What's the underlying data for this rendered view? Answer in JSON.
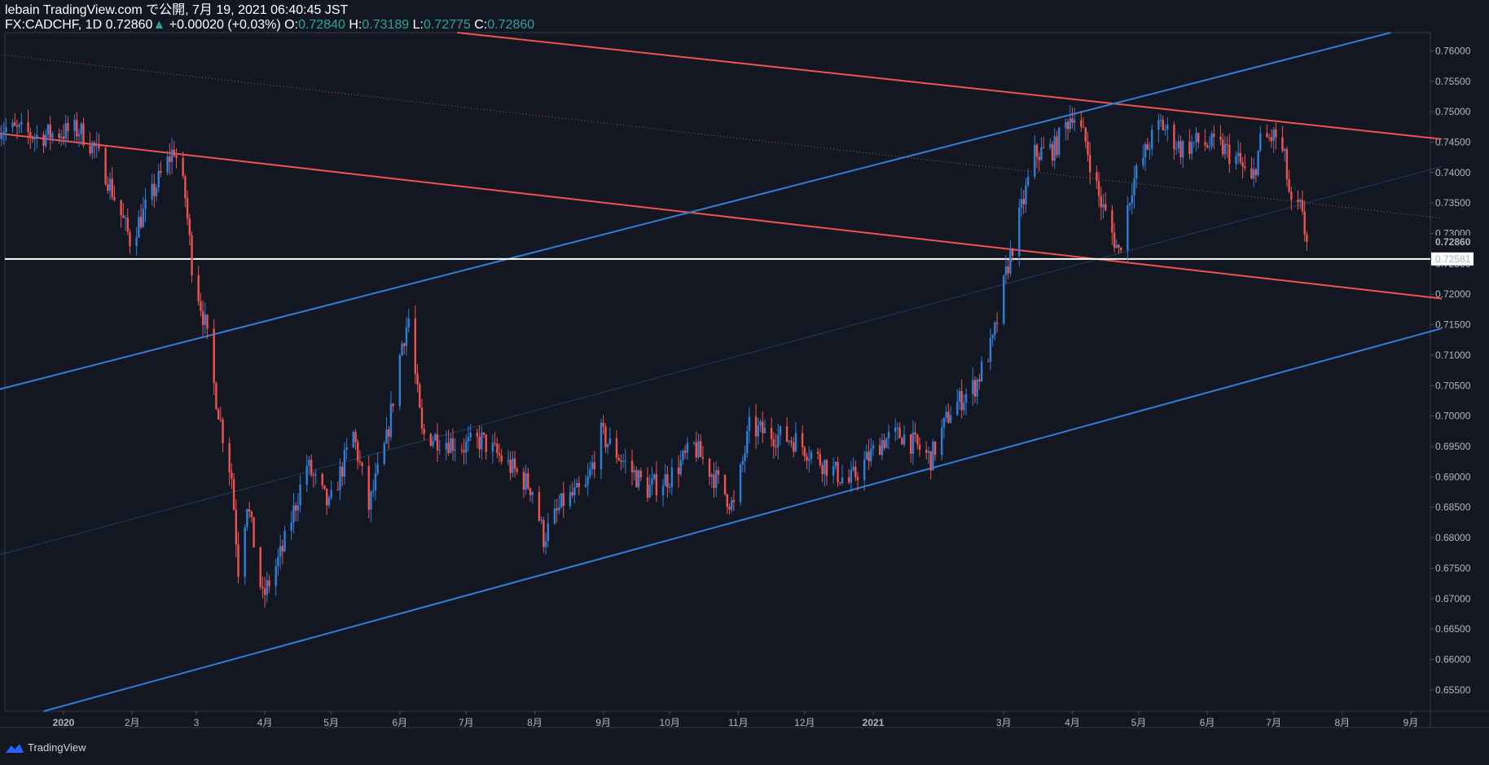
{
  "header": {
    "line1": "lebain TradingView.com で公開, 7月 19, 2021 06:40:45 JST",
    "symbol": "FX:CADCHF, 1D",
    "last": "0.72860",
    "change": "+0.00020 (+0.03%)",
    "o_label": "O:",
    "o_val": "0.72840",
    "h_label": "H:",
    "h_val": "0.73189",
    "l_label": "L:",
    "l_val": "0.72775",
    "c_label": "C:",
    "c_val": "0.72860",
    "up_arrow": "▲"
  },
  "footer": {
    "brand": "TradingView",
    "logo_icon": "tradingview-logo-icon"
  },
  "colors": {
    "background": "#131722",
    "up": "#2f7fd8",
    "down": "#ef5350",
    "resistance": "#ef5350",
    "support": "#2f7fd8",
    "hline": "#ffffff"
  },
  "chart_data": {
    "type": "candlestick",
    "symbol": "FX:CADCHF",
    "interval": "1D",
    "ylim": [
      0.6515,
      0.763
    ],
    "y_ticks": [
      "0.76000",
      "0.75500",
      "0.75000",
      "0.74500",
      "0.74000",
      "0.73500",
      "0.73000",
      "0.72500",
      "0.72000",
      "0.71500",
      "0.71000",
      "0.70500",
      "0.70000",
      "0.69500",
      "0.69000",
      "0.68500",
      "0.68000",
      "0.67500",
      "0.67000",
      "0.66500",
      "0.66000",
      "0.65500"
    ],
    "x_labels": [
      "2020",
      "2月",
      "3",
      "4月",
      "5月",
      "6月",
      "7月",
      "8月",
      "9月",
      "10月",
      "11月",
      "12月",
      "2021",
      "3月",
      "4月",
      "5月",
      "6月",
      "7月",
      "8月",
      "9月"
    ],
    "x_label_dates": [
      "2020-01-01",
      "2020-02-01",
      "2020-03-01",
      "2020-04-01",
      "2020-05-01",
      "2020-06-01",
      "2020-07-01",
      "2020-08-01",
      "2020-09-01",
      "2020-10-01",
      "2020-11-01",
      "2020-12-01",
      "2021-01-01",
      "2021-03-01",
      "2021-04-01",
      "2021-05-01",
      "2021-06-01",
      "2021-07-01",
      "2021-08-01",
      "2021-09-01"
    ],
    "last_price": "0.72860",
    "horizontal_line": {
      "label": "0.72581",
      "value": 0.72581
    },
    "waypoints": [
      [
        "2019-12-03",
        0.7475
      ],
      [
        "2019-12-20",
        0.746
      ],
      [
        "2020-01-08",
        0.747
      ],
      [
        "2020-01-15",
        0.744
      ],
      [
        "2020-01-20",
        0.74
      ],
      [
        "2020-01-31",
        0.729
      ],
      [
        "2020-02-07",
        0.734
      ],
      [
        "2020-02-14",
        0.7395
      ],
      [
        "2020-02-20",
        0.744
      ],
      [
        "2020-02-25",
        0.736
      ],
      [
        "2020-02-28",
        0.725
      ],
      [
        "2020-03-05",
        0.715
      ],
      [
        "2020-03-09",
        0.705
      ],
      [
        "2020-03-13",
        0.697
      ],
      [
        "2020-03-17",
        0.69
      ],
      [
        "2020-03-20",
        0.675
      ],
      [
        "2020-03-24",
        0.686
      ],
      [
        "2020-03-31",
        0.67
      ],
      [
        "2020-04-09",
        0.678
      ],
      [
        "2020-04-20",
        0.692
      ],
      [
        "2020-04-30",
        0.685
      ],
      [
        "2020-05-11",
        0.697
      ],
      [
        "2020-05-18",
        0.685
      ],
      [
        "2020-05-26",
        0.696
      ],
      [
        "2020-06-02",
        0.712
      ],
      [
        "2020-06-05",
        0.716
      ],
      [
        "2020-06-11",
        0.697
      ],
      [
        "2020-06-22",
        0.696
      ],
      [
        "2020-06-30",
        0.695
      ],
      [
        "2020-07-08",
        0.696
      ],
      [
        "2020-07-20",
        0.692
      ],
      [
        "2020-07-31",
        0.688
      ],
      [
        "2020-08-05",
        0.68
      ],
      [
        "2020-08-14",
        0.686
      ],
      [
        "2020-08-24",
        0.688
      ],
      [
        "2020-08-31",
        0.697
      ],
      [
        "2020-09-09",
        0.693
      ],
      [
        "2020-09-21",
        0.688
      ],
      [
        "2020-10-01",
        0.69
      ],
      [
        "2020-10-12",
        0.695
      ],
      [
        "2020-10-23",
        0.689
      ],
      [
        "2020-10-30",
        0.685
      ],
      [
        "2020-11-06",
        0.698
      ],
      [
        "2020-11-16",
        0.697
      ],
      [
        "2020-11-27",
        0.696
      ],
      [
        "2020-12-07",
        0.693
      ],
      [
        "2020-12-21",
        0.689
      ],
      [
        "2021-01-05",
        0.696
      ],
      [
        "2021-01-14",
        0.697
      ],
      [
        "2021-01-27",
        0.693
      ],
      [
        "2021-02-05",
        0.701
      ],
      [
        "2021-02-16",
        0.705
      ],
      [
        "2021-02-24",
        0.712
      ],
      [
        "2021-03-03",
        0.725
      ],
      [
        "2021-03-09",
        0.734
      ],
      [
        "2021-03-15",
        0.743
      ],
      [
        "2021-03-24",
        0.744
      ],
      [
        "2021-04-01",
        0.75
      ],
      [
        "2021-04-07",
        0.745
      ],
      [
        "2021-04-13",
        0.736
      ],
      [
        "2021-04-22",
        0.727
      ],
      [
        "2021-04-28",
        0.738
      ],
      [
        "2021-05-06",
        0.745
      ],
      [
        "2021-05-11",
        0.748
      ],
      [
        "2021-05-20",
        0.744
      ],
      [
        "2021-05-28",
        0.745
      ],
      [
        "2021-06-08",
        0.744
      ],
      [
        "2021-06-15",
        0.742
      ],
      [
        "2021-06-21",
        0.738
      ],
      [
        "2021-06-25",
        0.745
      ],
      [
        "2021-07-02",
        0.746
      ],
      [
        "2021-07-06",
        0.742
      ],
      [
        "2021-07-09",
        0.734
      ],
      [
        "2021-07-13",
        0.734
      ],
      [
        "2021-07-16",
        0.7286
      ]
    ],
    "trendlines": [
      {
        "name": "upper-resistance",
        "color": "#ef5350",
        "points": [
          [
            "2020-06-27",
            0.763
          ],
          [
            "2021-09-15",
            0.7455
          ]
        ]
      },
      {
        "name": "lower-resistance",
        "color": "#ef5350",
        "points": [
          [
            "2019-12-01",
            0.7465
          ],
          [
            "2021-09-15",
            0.7193
          ]
        ]
      },
      {
        "name": "resistance-midline",
        "color": "#ef5350",
        "dotted": true,
        "points": [
          [
            "2019-12-01",
            0.7595
          ],
          [
            "2021-09-15",
            0.7325
          ]
        ]
      },
      {
        "name": "upper-support",
        "color": "#2f7fd8",
        "points": [
          [
            "2019-12-01",
            0.7042
          ],
          [
            "2021-08-23",
            0.763
          ]
        ]
      },
      {
        "name": "lower-support",
        "color": "#2f7fd8",
        "points": [
          [
            "2019-12-23",
            0.6515
          ],
          [
            "2021-09-15",
            0.7144
          ]
        ]
      },
      {
        "name": "support-midline",
        "color": "#2f7fd8",
        "thin": true,
        "points": [
          [
            "2019-12-01",
            0.677
          ],
          [
            "2021-09-15",
            0.741
          ]
        ]
      }
    ]
  }
}
